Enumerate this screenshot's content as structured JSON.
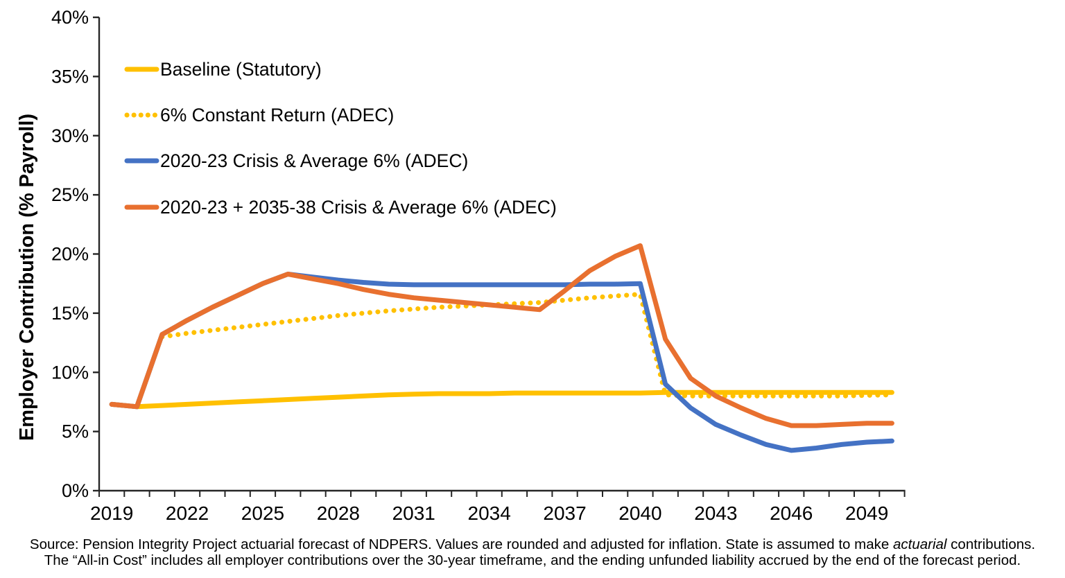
{
  "chart_data": {
    "type": "line",
    "title": "",
    "xlabel": "",
    "ylabel": "Employer Contribution (% Payroll)",
    "ylim": [
      0,
      40
    ],
    "ytick_step": 5,
    "ytick_suffix": "%",
    "grid": false,
    "legend_position": "top-left",
    "categories": [
      2019,
      2020,
      2021,
      2022,
      2023,
      2024,
      2025,
      2026,
      2027,
      2028,
      2029,
      2030,
      2031,
      2032,
      2033,
      2034,
      2035,
      2036,
      2037,
      2038,
      2039,
      2040,
      2041,
      2042,
      2043,
      2044,
      2045,
      2046,
      2047,
      2048,
      2049,
      2050
    ],
    "xtick_labels": [
      "2019",
      "2022",
      "2025",
      "2028",
      "2031",
      "2034",
      "2037",
      "2040",
      "2043",
      "2046",
      "2049"
    ],
    "series": [
      {
        "key": "baseline-statutory",
        "name": "Baseline (Statutory)",
        "color": "#FFC000",
        "style": "solid",
        "values": [
          7.3,
          7.1,
          7.2,
          7.3,
          7.4,
          7.5,
          7.6,
          7.7,
          7.8,
          7.9,
          8.0,
          8.1,
          8.15,
          8.2,
          8.2,
          8.2,
          8.25,
          8.25,
          8.25,
          8.25,
          8.25,
          8.25,
          8.3,
          8.3,
          8.3,
          8.3,
          8.3,
          8.3,
          8.3,
          8.3,
          8.3,
          8.3
        ]
      },
      {
        "key": "constant-6-adec",
        "name": "6% Constant Return (ADEC)",
        "color": "#FFC000",
        "style": "dotted",
        "values": [
          null,
          null,
          13.0,
          13.3,
          13.55,
          13.8,
          14.05,
          14.3,
          14.55,
          14.8,
          15.0,
          15.2,
          15.35,
          15.5,
          15.6,
          15.7,
          15.8,
          15.9,
          16.1,
          16.3,
          16.45,
          16.6,
          8.1,
          8.0,
          8.0,
          8.0,
          8.0,
          8.0,
          8.0,
          8.0,
          8.05,
          8.1
        ]
      },
      {
        "key": "crisis-2020-23-adec",
        "name": "2020-23 Crisis & Average 6% (ADEC)",
        "color": "#4472C4",
        "style": "solid",
        "values": [
          7.3,
          7.1,
          13.2,
          14.4,
          15.5,
          16.5,
          17.5,
          18.3,
          18.05,
          17.8,
          17.6,
          17.45,
          17.4,
          17.4,
          17.4,
          17.4,
          17.4,
          17.4,
          17.4,
          17.45,
          17.45,
          17.5,
          9.0,
          7.0,
          5.6,
          4.7,
          3.9,
          3.4,
          3.6,
          3.9,
          4.1,
          4.2
        ]
      },
      {
        "key": "crisis-2020-23-2035-38-adec",
        "name": "2020-23 + 2035-38 Crisis & Average 6% (ADEC)",
        "color": "#E8702F",
        "style": "solid",
        "values": [
          7.3,
          7.1,
          13.2,
          14.4,
          15.5,
          16.5,
          17.5,
          18.3,
          17.9,
          17.5,
          17.0,
          16.6,
          16.3,
          16.1,
          15.9,
          15.7,
          15.5,
          15.3,
          16.9,
          18.6,
          19.8,
          20.7,
          12.8,
          9.5,
          8.0,
          7.0,
          6.1,
          5.5,
          5.5,
          5.6,
          5.7,
          5.7
        ]
      }
    ]
  },
  "source": {
    "line1_prefix": "Source: Pension Integrity Project actuarial forecast of NDPERS. Values are rounded and adjusted for inflation. State is assumed to make ",
    "line1_italic": "actuarial",
    "line1_suffix": " contributions.",
    "line2": "The “All-in Cost” includes all employer contributions over the 30-year timeframe, and the ending unfunded liability accrued by the end of the forecast period."
  }
}
